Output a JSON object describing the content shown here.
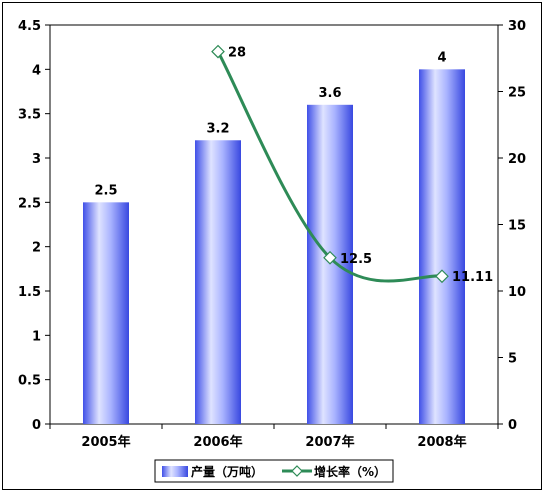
{
  "chart_data": {
    "type": "bar",
    "categories": [
      "2005年",
      "2006年",
      "2007年",
      "2008年"
    ],
    "series": [
      {
        "name": "产量（万吨）",
        "type": "bar",
        "axis": "left",
        "values": [
          2.5,
          3.2,
          3.6,
          4
        ],
        "labels": [
          "2.5",
          "3.2",
          "3.6",
          "4"
        ],
        "color": "#5a6cf0"
      },
      {
        "name": "增长率（%）",
        "type": "line",
        "axis": "right",
        "values": [
          null,
          28,
          12.5,
          11.11
        ],
        "labels": [
          "",
          "28",
          "12.5",
          "11.11"
        ],
        "color": "#2e8b57"
      }
    ],
    "y_left": {
      "min": 0,
      "max": 4.5,
      "step": 0.5,
      "tick_labels": [
        "0",
        "0.5",
        "1",
        "1.5",
        "2",
        "2.5",
        "3",
        "3.5",
        "4",
        "4.5"
      ]
    },
    "y_right": {
      "min": 0,
      "max": 30,
      "step": 5,
      "tick_labels": [
        "0",
        "5",
        "10",
        "15",
        "20",
        "25",
        "30"
      ]
    },
    "legend": {
      "position": "bottom"
    },
    "grid": false
  }
}
